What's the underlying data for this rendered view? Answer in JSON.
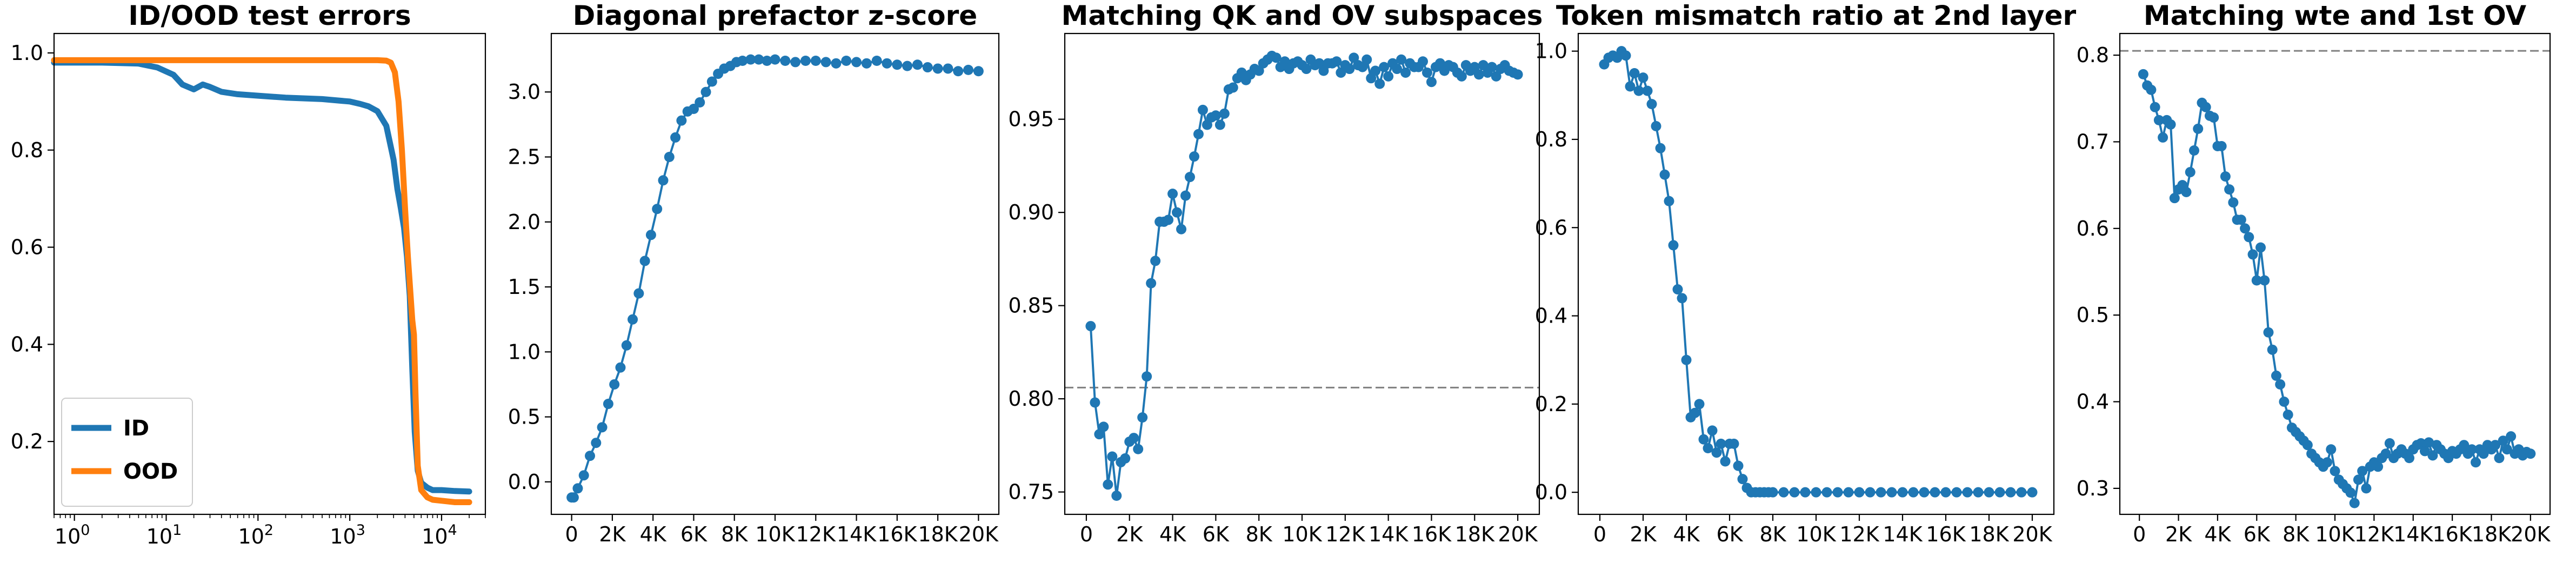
{
  "chart_data": [
    {
      "type": "line",
      "title": "ID/OOD test errors",
      "xscale": "log",
      "xlim": [
        0.6,
        30000
      ],
      "ylim": [
        0.05,
        1.04
      ],
      "xticks": [
        1,
        10,
        100,
        1000,
        10000
      ],
      "xtick_base": "10",
      "xtick_exps": [
        "0",
        "1",
        "2",
        "3",
        "4"
      ],
      "yticks": [
        0.2,
        0.4,
        0.6,
        0.8,
        1.0
      ],
      "ytick_labels": [
        "0.2",
        "0.4",
        "0.6",
        "0.8",
        "1.0"
      ],
      "legend": "lower-left",
      "colors": {
        "ID": "#1f77b4",
        "OOD": "#ff7f0e"
      },
      "series": [
        {
          "name": "ID",
          "x": [
            0.6,
            1,
            2,
            5,
            8,
            12,
            15,
            20,
            25,
            30,
            40,
            60,
            100,
            200,
            500,
            1000,
            1300,
            1600,
            2000,
            2500,
            3000,
            3300,
            3600,
            3900,
            4200,
            4500,
            4800,
            5100,
            5500,
            6000,
            7000,
            8000,
            10000,
            14000,
            20000
          ],
          "values": [
            0.98,
            0.98,
            0.98,
            0.978,
            0.97,
            0.955,
            0.935,
            0.925,
            0.935,
            0.93,
            0.92,
            0.915,
            0.912,
            0.908,
            0.905,
            0.9,
            0.895,
            0.89,
            0.88,
            0.85,
            0.78,
            0.72,
            0.68,
            0.64,
            0.58,
            0.5,
            0.35,
            0.22,
            0.14,
            0.115,
            0.105,
            0.1,
            0.1,
            0.098,
            0.097
          ]
        },
        {
          "name": "OOD",
          "x": [
            0.6,
            1,
            10,
            100,
            1000,
            2000,
            2500,
            2800,
            3100,
            3400,
            3700,
            4000,
            4300,
            4600,
            4800,
            5000,
            5200,
            5500,
            6000,
            7000,
            8000,
            10000,
            14000,
            20000
          ],
          "values": [
            0.985,
            0.985,
            0.985,
            0.985,
            0.985,
            0.985,
            0.984,
            0.98,
            0.96,
            0.9,
            0.8,
            0.68,
            0.58,
            0.5,
            0.45,
            0.42,
            0.3,
            0.15,
            0.1,
            0.085,
            0.08,
            0.078,
            0.075,
            0.075
          ]
        }
      ]
    },
    {
      "type": "line",
      "title": "Diagonal prefactor z-score",
      "xlim": [
        -1000,
        21000
      ],
      "ylim": [
        -0.25,
        3.45
      ],
      "xticks": [
        0,
        2000,
        4000,
        6000,
        8000,
        10000,
        12000,
        14000,
        16000,
        18000,
        20000
      ],
      "xtick_labels": [
        "0",
        "2K",
        "4K",
        "6K",
        "8K",
        "10K",
        "12K",
        "14K",
        "16K",
        "18K",
        "20K"
      ],
      "yticks": [
        0,
        0.5,
        1.0,
        1.5,
        2.0,
        2.5,
        3.0
      ],
      "ytick_labels": [
        "0.0",
        "0.5",
        "1.0",
        "1.5",
        "2.0",
        "2.5",
        "3.0"
      ],
      "colors": {
        "series": "#1f77b4"
      },
      "series": [
        {
          "x": [
            0,
            100,
            300,
            600,
            900,
            1200,
            1500,
            1800,
            2100,
            2400,
            2700,
            3000,
            3300,
            3600,
            3900,
            4200,
            4500,
            4800,
            5100,
            5400,
            5700,
            6000,
            6300,
            6600,
            6900,
            7200,
            7500,
            7800,
            8100,
            8400,
            8800,
            9200,
            9600,
            10000,
            10500,
            11000,
            11500,
            12000,
            12500,
            13000,
            13500,
            14000,
            14500,
            15000,
            15500,
            16000,
            16500,
            17000,
            17500,
            18000,
            18500,
            19000,
            19500,
            20000
          ],
          "values": [
            -0.12,
            -0.12,
            -0.05,
            0.05,
            0.2,
            0.3,
            0.42,
            0.6,
            0.75,
            0.88,
            1.05,
            1.25,
            1.45,
            1.7,
            1.9,
            2.1,
            2.32,
            2.5,
            2.65,
            2.78,
            2.85,
            2.87,
            2.92,
            3.0,
            3.08,
            3.14,
            3.18,
            3.2,
            3.23,
            3.24,
            3.25,
            3.25,
            3.24,
            3.25,
            3.24,
            3.23,
            3.24,
            3.24,
            3.23,
            3.22,
            3.24,
            3.23,
            3.22,
            3.24,
            3.22,
            3.21,
            3.2,
            3.21,
            3.19,
            3.18,
            3.18,
            3.16,
            3.17,
            3.16
          ]
        }
      ]
    },
    {
      "type": "line",
      "title": "Matching QK and OV subspaces",
      "xlim": [
        -1000,
        21000
      ],
      "ylim": [
        0.738,
        0.996
      ],
      "xticks": [
        0,
        2000,
        4000,
        6000,
        8000,
        10000,
        12000,
        14000,
        16000,
        18000,
        20000
      ],
      "xtick_labels": [
        "0",
        "2K",
        "4K",
        "6K",
        "8K",
        "10K",
        "12K",
        "14K",
        "16K",
        "18K",
        "20K"
      ],
      "yticks": [
        0.75,
        0.8,
        0.85,
        0.9,
        0.95
      ],
      "ytick_labels": [
        "0.75",
        "0.80",
        "0.85",
        "0.90",
        "0.95"
      ],
      "reference_line": 0.806,
      "colors": {
        "series": "#1f77b4",
        "reference": "#808080"
      },
      "series": [
        {
          "x": [
            200,
            400,
            600,
            800,
            1000,
            1200,
            1400,
            1600,
            1800,
            2000,
            2200,
            2400,
            2600,
            2800,
            3000,
            3200,
            3400,
            3600,
            3800,
            4000,
            4200,
            4400,
            4600,
            4800,
            5000,
            5200,
            5400,
            5600,
            5800,
            6000,
            6200,
            6400,
            6600,
            6800,
            7000,
            7200,
            7400,
            7600,
            7800,
            8000,
            8200,
            8400,
            8600,
            8800,
            9000,
            9200,
            9400,
            9600,
            9800,
            10000,
            10200,
            10400,
            10600,
            10800,
            11000,
            11200,
            11400,
            11600,
            11800,
            12000,
            12200,
            12400,
            12600,
            12800,
            13000,
            13200,
            13400,
            13600,
            13800,
            14000,
            14200,
            14400,
            14600,
            14800,
            15000,
            15200,
            15400,
            15600,
            15800,
            16000,
            16200,
            16400,
            16600,
            16800,
            17000,
            17200,
            17400,
            17600,
            17800,
            18000,
            18200,
            18400,
            18600,
            18800,
            19000,
            19200,
            19400,
            19600,
            19800,
            20000
          ],
          "values": [
            0.839,
            0.798,
            0.781,
            0.785,
            0.754,
            0.769,
            0.748,
            0.766,
            0.768,
            0.777,
            0.779,
            0.773,
            0.79,
            0.812,
            0.862,
            0.874,
            0.895,
            0.895,
            0.896,
            0.91,
            0.9,
            0.891,
            0.909,
            0.919,
            0.93,
            0.942,
            0.955,
            0.947,
            0.951,
            0.952,
            0.947,
            0.953,
            0.966,
            0.967,
            0.972,
            0.975,
            0.971,
            0.974,
            0.977,
            0.976,
            0.98,
            0.982,
            0.984,
            0.983,
            0.978,
            0.981,
            0.977,
            0.98,
            0.981,
            0.979,
            0.977,
            0.982,
            0.979,
            0.98,
            0.976,
            0.98,
            0.98,
            0.981,
            0.975,
            0.979,
            0.977,
            0.983,
            0.979,
            0.978,
            0.982,
            0.972,
            0.976,
            0.969,
            0.978,
            0.973,
            0.98,
            0.977,
            0.982,
            0.975,
            0.98,
            0.978,
            0.978,
            0.981,
            0.975,
            0.97,
            0.978,
            0.98,
            0.976,
            0.979,
            0.978,
            0.975,
            0.973,
            0.979,
            0.976,
            0.978,
            0.974,
            0.979,
            0.975,
            0.978,
            0.973,
            0.977,
            0.979,
            0.976,
            0.975,
            0.974
          ]
        }
      ]
    },
    {
      "type": "line",
      "title": "Token mismatch ratio at 2nd layer",
      "xlim": [
        -1000,
        21000
      ],
      "ylim": [
        -0.05,
        1.04
      ],
      "xticks": [
        0,
        2000,
        4000,
        6000,
        8000,
        10000,
        12000,
        14000,
        16000,
        18000,
        20000
      ],
      "xtick_labels": [
        "0",
        "2K",
        "4K",
        "6K",
        "8K",
        "10K",
        "12K",
        "14K",
        "16K",
        "18K",
        "20K"
      ],
      "yticks": [
        0,
        0.2,
        0.4,
        0.6,
        0.8,
        1.0
      ],
      "ytick_labels": [
        "0.0",
        "0.2",
        "0.4",
        "0.6",
        "0.8",
        "1.0"
      ],
      "colors": {
        "series": "#1f77b4"
      },
      "series": [
        {
          "x": [
            200,
            400,
            600,
            800,
            1000,
            1200,
            1400,
            1600,
            1800,
            2000,
            2200,
            2400,
            2600,
            2800,
            3000,
            3200,
            3400,
            3600,
            3800,
            4000,
            4200,
            4400,
            4600,
            4800,
            5000,
            5200,
            5400,
            5600,
            5800,
            6000,
            6200,
            6400,
            6600,
            6800,
            7000,
            7200,
            7400,
            7600,
            7800,
            8000,
            8500,
            9000,
            9500,
            10000,
            10500,
            11000,
            11500,
            12000,
            12500,
            13000,
            13500,
            14000,
            14500,
            15000,
            15500,
            16000,
            16500,
            17000,
            17500,
            18000,
            18500,
            19000,
            19500,
            20000
          ],
          "values": [
            0.97,
            0.985,
            0.99,
            0.985,
            1.0,
            0.99,
            0.92,
            0.95,
            0.91,
            0.94,
            0.91,
            0.88,
            0.83,
            0.78,
            0.72,
            0.66,
            0.56,
            0.46,
            0.44,
            0.3,
            0.17,
            0.18,
            0.2,
            0.12,
            0.1,
            0.14,
            0.09,
            0.11,
            0.07,
            0.11,
            0.11,
            0.06,
            0.03,
            0.01,
            0.0,
            0.0,
            0.0,
            0.0,
            0.0,
            0.0,
            0.0,
            0.0,
            0.0,
            0.0,
            0.0,
            0.0,
            0.0,
            0.0,
            0.0,
            0.0,
            0.0,
            0.0,
            0.0,
            0.0,
            0.0,
            0.0,
            0.0,
            0.0,
            0.0,
            0.0,
            0.0,
            0.0,
            0.0,
            0.0
          ]
        }
      ]
    },
    {
      "type": "line",
      "title": "Matching wte and 1st OV",
      "xlim": [
        -1000,
        21000
      ],
      "ylim": [
        0.27,
        0.825
      ],
      "xticks": [
        0,
        2000,
        4000,
        6000,
        8000,
        10000,
        12000,
        14000,
        16000,
        18000,
        20000
      ],
      "xtick_labels": [
        "0",
        "2K",
        "4K",
        "6K",
        "8K",
        "10K",
        "12K",
        "14K",
        "16K",
        "18K",
        "20K"
      ],
      "yticks": [
        0.3,
        0.4,
        0.5,
        0.6,
        0.7,
        0.8
      ],
      "ytick_labels": [
        "0.3",
        "0.4",
        "0.5",
        "0.6",
        "0.7",
        "0.8"
      ],
      "reference_line": 0.805,
      "colors": {
        "series": "#1f77b4",
        "reference": "#808080"
      },
      "series": [
        {
          "x": [
            200,
            400,
            600,
            800,
            1000,
            1200,
            1400,
            1600,
            1800,
            2000,
            2200,
            2400,
            2600,
            2800,
            3000,
            3200,
            3400,
            3600,
            3800,
            4000,
            4200,
            4400,
            4600,
            4800,
            5000,
            5200,
            5400,
            5600,
            5800,
            6000,
            6200,
            6400,
            6600,
            6800,
            7000,
            7200,
            7400,
            7600,
            7800,
            8000,
            8200,
            8400,
            8600,
            8800,
            9000,
            9200,
            9400,
            9600,
            9800,
            10000,
            10200,
            10400,
            10600,
            10800,
            11000,
            11200,
            11400,
            11600,
            11800,
            12000,
            12200,
            12400,
            12600,
            12800,
            13000,
            13200,
            13400,
            13600,
            13800,
            14000,
            14200,
            14400,
            14600,
            14800,
            15000,
            15200,
            15400,
            15600,
            15800,
            16000,
            16200,
            16400,
            16600,
            16800,
            17000,
            17200,
            17400,
            17600,
            17800,
            18000,
            18200,
            18400,
            18600,
            18800,
            19000,
            19200,
            19400,
            19600,
            19800,
            20000
          ],
          "values": [
            0.778,
            0.765,
            0.76,
            0.74,
            0.725,
            0.705,
            0.725,
            0.72,
            0.635,
            0.645,
            0.65,
            0.642,
            0.665,
            0.69,
            0.715,
            0.745,
            0.74,
            0.73,
            0.728,
            0.695,
            0.695,
            0.66,
            0.645,
            0.63,
            0.61,
            0.61,
            0.6,
            0.59,
            0.57,
            0.54,
            0.578,
            0.54,
            0.48,
            0.46,
            0.43,
            0.42,
            0.4,
            0.385,
            0.37,
            0.365,
            0.36,
            0.355,
            0.35,
            0.34,
            0.335,
            0.33,
            0.325,
            0.33,
            0.345,
            0.32,
            0.31,
            0.305,
            0.3,
            0.295,
            0.283,
            0.31,
            0.32,
            0.3,
            0.325,
            0.33,
            0.325,
            0.335,
            0.34,
            0.352,
            0.335,
            0.34,
            0.345,
            0.34,
            0.335,
            0.345,
            0.35,
            0.352,
            0.343,
            0.353,
            0.338,
            0.35,
            0.345,
            0.34,
            0.335,
            0.343,
            0.34,
            0.345,
            0.35,
            0.34,
            0.345,
            0.33,
            0.345,
            0.34,
            0.35,
            0.345,
            0.35,
            0.335,
            0.355,
            0.345,
            0.36,
            0.34,
            0.345,
            0.338,
            0.342,
            0.34
          ]
        }
      ]
    }
  ]
}
